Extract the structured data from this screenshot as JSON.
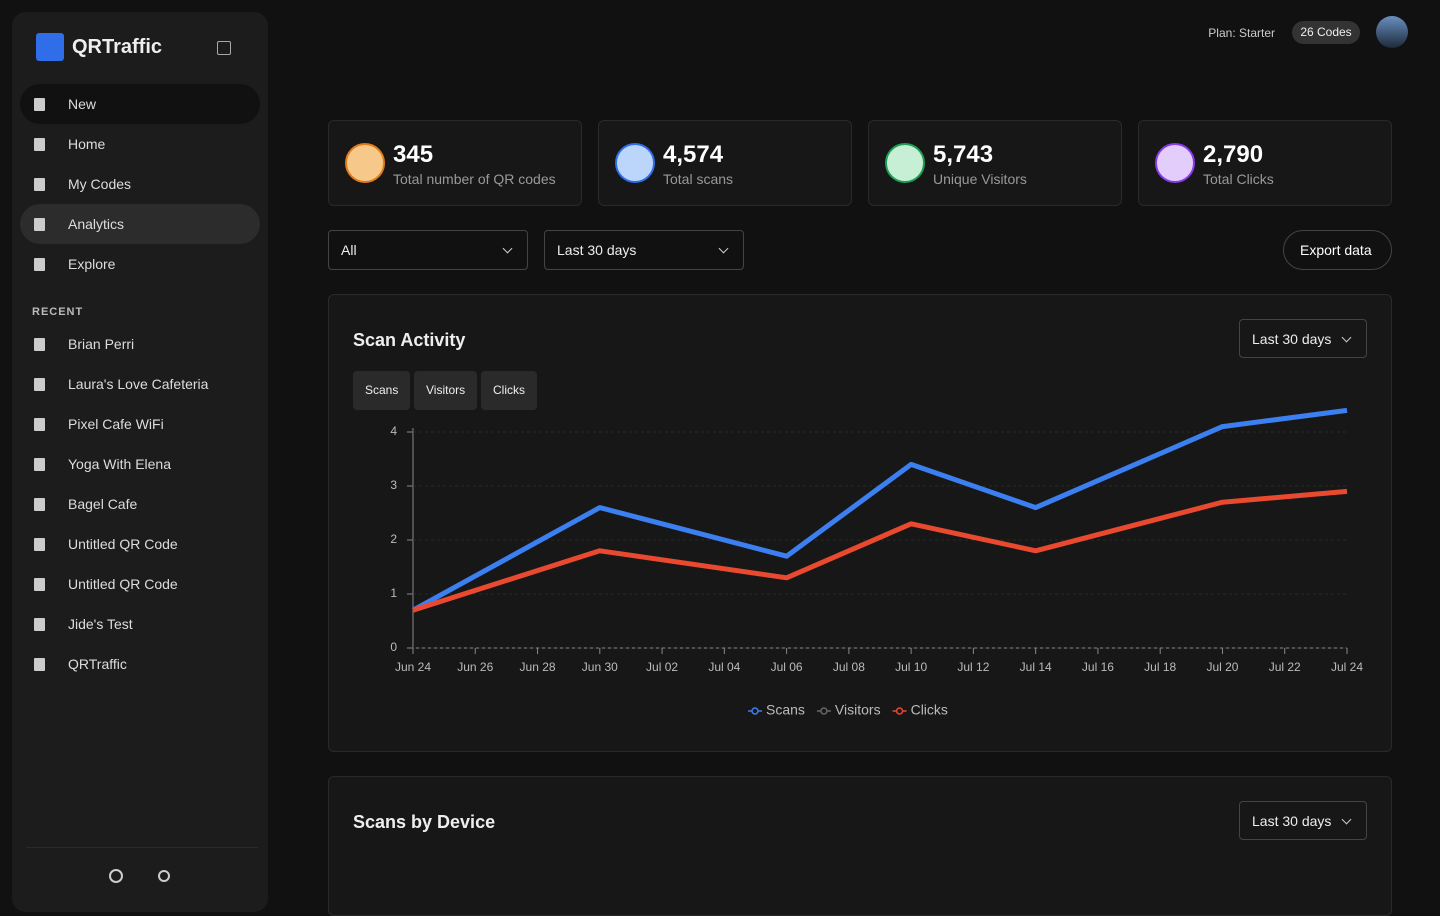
{
  "sidebar": {
    "brand": "QRTraffic",
    "nav": [
      "New",
      "Home",
      "My Codes",
      "Analytics",
      "Explore"
    ],
    "recent_heading": "RECENT",
    "recent": [
      "Brian Perri",
      "Laura's Love Cafeteria",
      "Pixel Cafe WiFi",
      "Yoga With Elena",
      "Bagel Cafe",
      "Untitled QR Code",
      "Untitled QR Code",
      "Jide's Test",
      "QRTraffic"
    ]
  },
  "header": {
    "plan": "Plan: Starter",
    "codes": "26 Codes"
  },
  "stats": [
    {
      "value": "345",
      "label": "Total number of QR codes"
    },
    {
      "value": "4,574",
      "label": "Total scans"
    },
    {
      "value": "5,743",
      "label": "Unique Visitors"
    },
    {
      "value": "2,790",
      "label": "Total Clicks"
    }
  ],
  "filters": {
    "type": "All",
    "range": "Last 30 days",
    "export": "Export data"
  },
  "scan_activity": {
    "title": "Scan Activity",
    "range": "Last 30 days",
    "tabs": [
      "Scans",
      "Visitors",
      "Clicks"
    ]
  },
  "device": {
    "title": "Scans by Device",
    "range": "Last 30 days"
  },
  "chart_data": {
    "type": "line",
    "x": [
      "Jun 24",
      "Jun 30",
      "Jul 06",
      "Jul 10",
      "Jul 14",
      "Jul 20",
      "Jul 24"
    ],
    "xticks": [
      "Jun 24",
      "Jun 26",
      "Jun 28",
      "Jun 30",
      "Jul 02",
      "Jul 04",
      "Jul 06",
      "Jul 08",
      "Jul 10",
      "Jul 12",
      "Jul 14",
      "Jul 16",
      "Jul 18",
      "Jul 20",
      "Jul 22",
      "Jul 24"
    ],
    "ylim": [
      0,
      4
    ],
    "yticks": [
      0,
      1,
      2,
      3,
      4
    ],
    "grid": true,
    "series": [
      {
        "name": "Scans",
        "color": "#3b7ff0",
        "values": [
          0.7,
          2.6,
          1.7,
          3.4,
          2.6,
          4.1,
          4.4
        ]
      },
      {
        "name": "Visitors",
        "color": "#666666",
        "values": [
          null,
          null,
          null,
          null,
          null,
          null,
          null
        ]
      },
      {
        "name": "Clicks",
        "color": "#e8492f",
        "values": [
          0.7,
          1.8,
          1.3,
          2.3,
          1.8,
          2.7,
          2.9
        ]
      }
    ]
  }
}
